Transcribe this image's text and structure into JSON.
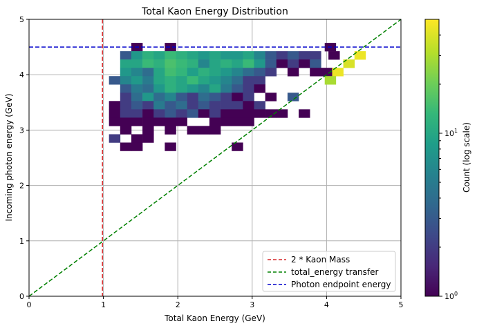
{
  "chart_data": {
    "type": "heatmap",
    "title": "Total Kaon Energy Distribution",
    "xlabel": "Total Kaon Energy (GeV)",
    "ylabel": "Incoming photon energy (GeV)",
    "xlim": [
      0,
      5
    ],
    "ylim": [
      0,
      5
    ],
    "xticks": [
      "0",
      "1",
      "2",
      "3",
      "4",
      "5"
    ],
    "yticks": [
      "0",
      "1",
      "2",
      "3",
      "4",
      "5"
    ],
    "bin_width": 0.15,
    "grid": true,
    "colorbar": {
      "label": "Count (log scale)",
      "scale": "log",
      "range": [
        1,
        50
      ],
      "tick_labels": [
        "10^0",
        "10^1"
      ],
      "colormap": "viridis"
    },
    "reference_lines": [
      {
        "label": "2 * Kaon Mass",
        "kind": "vertical",
        "x": 0.987,
        "color": "#d62728",
        "style": "dashed"
      },
      {
        "label": "total_energy transfer",
        "kind": "diagonal",
        "from": [
          0,
          0
        ],
        "to": [
          5,
          5
        ],
        "color": "#008000",
        "style": "dashed"
      },
      {
        "label": "Photon endpoint energy",
        "kind": "horizontal",
        "y": 4.5,
        "color": "#0000cc",
        "style": "dashed"
      }
    ],
    "legend_position": "lower-right",
    "rows": [
      {
        "y": 4.5,
        "cells": [
          [
            1.45,
            1
          ],
          [
            1.9,
            1
          ],
          [
            4.05,
            1
          ]
        ]
      },
      {
        "y": 4.35,
        "cells": [
          [
            1.3,
            3
          ],
          [
            1.45,
            8
          ],
          [
            1.6,
            12
          ],
          [
            1.75,
            10
          ],
          [
            1.9,
            14
          ],
          [
            2.05,
            12
          ],
          [
            2.2,
            10
          ],
          [
            2.35,
            8
          ],
          [
            2.5,
            10
          ],
          [
            2.65,
            8
          ],
          [
            2.8,
            8
          ],
          [
            2.95,
            10
          ],
          [
            3.1,
            6
          ],
          [
            3.25,
            3
          ],
          [
            3.4,
            2
          ],
          [
            3.55,
            3
          ],
          [
            3.7,
            2
          ],
          [
            3.85,
            2
          ],
          [
            4.1,
            1
          ],
          [
            4.45,
            45
          ]
        ]
      },
      {
        "y": 4.2,
        "cells": [
          [
            1.3,
            10
          ],
          [
            1.45,
            10
          ],
          [
            1.6,
            14
          ],
          [
            1.75,
            12
          ],
          [
            1.9,
            16
          ],
          [
            2.05,
            14
          ],
          [
            2.2,
            12
          ],
          [
            2.35,
            6
          ],
          [
            2.5,
            10
          ],
          [
            2.65,
            12
          ],
          [
            2.8,
            10
          ],
          [
            2.95,
            14
          ],
          [
            3.1,
            8
          ],
          [
            3.25,
            3
          ],
          [
            3.4,
            1
          ],
          [
            3.55,
            2
          ],
          [
            3.7,
            1
          ],
          [
            3.85,
            3
          ],
          [
            4.3,
            40
          ]
        ]
      },
      {
        "y": 4.05,
        "cells": [
          [
            1.3,
            8
          ],
          [
            1.45,
            6
          ],
          [
            1.6,
            4
          ],
          [
            1.75,
            10
          ],
          [
            1.9,
            15
          ],
          [
            2.05,
            13
          ],
          [
            2.2,
            9
          ],
          [
            2.35,
            12
          ],
          [
            2.5,
            10
          ],
          [
            2.65,
            8
          ],
          [
            2.8,
            6
          ],
          [
            2.95,
            4
          ],
          [
            3.1,
            3
          ],
          [
            3.25,
            2
          ],
          [
            3.55,
            1
          ],
          [
            3.85,
            1
          ],
          [
            4.0,
            1
          ],
          [
            4.15,
            45
          ]
        ]
      },
      {
        "y": 3.9,
        "cells": [
          [
            1.15,
            3
          ],
          [
            1.3,
            6
          ],
          [
            1.45,
            8
          ],
          [
            1.6,
            5
          ],
          [
            1.75,
            10
          ],
          [
            1.9,
            12
          ],
          [
            2.05,
            10
          ],
          [
            2.2,
            14
          ],
          [
            2.35,
            10
          ],
          [
            2.5,
            8
          ],
          [
            2.65,
            6
          ],
          [
            2.8,
            4
          ],
          [
            2.95,
            2
          ],
          [
            3.1,
            2
          ],
          [
            4.05,
            30
          ]
        ]
      },
      {
        "y": 3.75,
        "cells": [
          [
            1.3,
            3
          ],
          [
            1.45,
            5
          ],
          [
            1.6,
            4
          ],
          [
            1.75,
            8
          ],
          [
            1.9,
            12
          ],
          [
            2.05,
            10
          ],
          [
            2.2,
            8
          ],
          [
            2.35,
            6
          ],
          [
            2.5,
            10
          ],
          [
            2.65,
            5
          ],
          [
            2.8,
            3
          ],
          [
            2.95,
            2
          ],
          [
            3.1,
            1
          ]
        ]
      },
      {
        "y": 3.6,
        "cells": [
          [
            1.3,
            2
          ],
          [
            1.45,
            4
          ],
          [
            1.6,
            8
          ],
          [
            1.75,
            4
          ],
          [
            1.9,
            6
          ],
          [
            2.05,
            3
          ],
          [
            2.2,
            2
          ],
          [
            2.35,
            4
          ],
          [
            2.5,
            3
          ],
          [
            2.65,
            2
          ],
          [
            2.8,
            1
          ],
          [
            2.95,
            2
          ],
          [
            3.25,
            1
          ],
          [
            3.55,
            3
          ]
        ]
      },
      {
        "y": 3.45,
        "cells": [
          [
            1.15,
            1
          ],
          [
            1.3,
            2
          ],
          [
            1.45,
            3
          ],
          [
            1.6,
            2
          ],
          [
            1.75,
            5
          ],
          [
            1.9,
            3
          ],
          [
            2.05,
            4
          ],
          [
            2.2,
            2
          ],
          [
            2.35,
            3
          ],
          [
            2.5,
            2
          ],
          [
            2.65,
            2
          ],
          [
            2.8,
            2
          ],
          [
            2.95,
            1
          ],
          [
            3.1,
            2
          ]
        ]
      },
      {
        "y": 3.3,
        "cells": [
          [
            1.15,
            1
          ],
          [
            1.3,
            2
          ],
          [
            1.45,
            2
          ],
          [
            1.6,
            1
          ],
          [
            1.75,
            2
          ],
          [
            1.9,
            3
          ],
          [
            2.05,
            2
          ],
          [
            2.2,
            3
          ],
          [
            2.35,
            1
          ],
          [
            2.5,
            2
          ],
          [
            2.65,
            1
          ],
          [
            2.8,
            1
          ],
          [
            2.95,
            1
          ],
          [
            3.1,
            1
          ],
          [
            3.25,
            1
          ],
          [
            3.4,
            1
          ],
          [
            3.7,
            1
          ]
        ]
      },
      {
        "y": 3.15,
        "cells": [
          [
            1.15,
            1
          ],
          [
            1.3,
            1
          ],
          [
            1.45,
            1
          ],
          [
            1.6,
            1
          ],
          [
            1.75,
            1
          ],
          [
            1.9,
            1
          ],
          [
            2.05,
            1
          ],
          [
            2.5,
            1
          ],
          [
            2.65,
            1
          ],
          [
            2.8,
            1
          ],
          [
            2.95,
            1
          ]
        ]
      },
      {
        "y": 3.0,
        "cells": [
          [
            1.3,
            1
          ],
          [
            1.6,
            1
          ],
          [
            1.9,
            1
          ],
          [
            2.2,
            1
          ],
          [
            2.35,
            1
          ],
          [
            2.5,
            1
          ]
        ]
      },
      {
        "y": 2.85,
        "cells": [
          [
            1.15,
            2
          ],
          [
            1.45,
            1
          ],
          [
            1.6,
            1
          ]
        ]
      },
      {
        "y": 2.7,
        "cells": [
          [
            1.3,
            1
          ],
          [
            1.45,
            1
          ],
          [
            1.9,
            1
          ],
          [
            2.8,
            1
          ]
        ]
      }
    ]
  }
}
